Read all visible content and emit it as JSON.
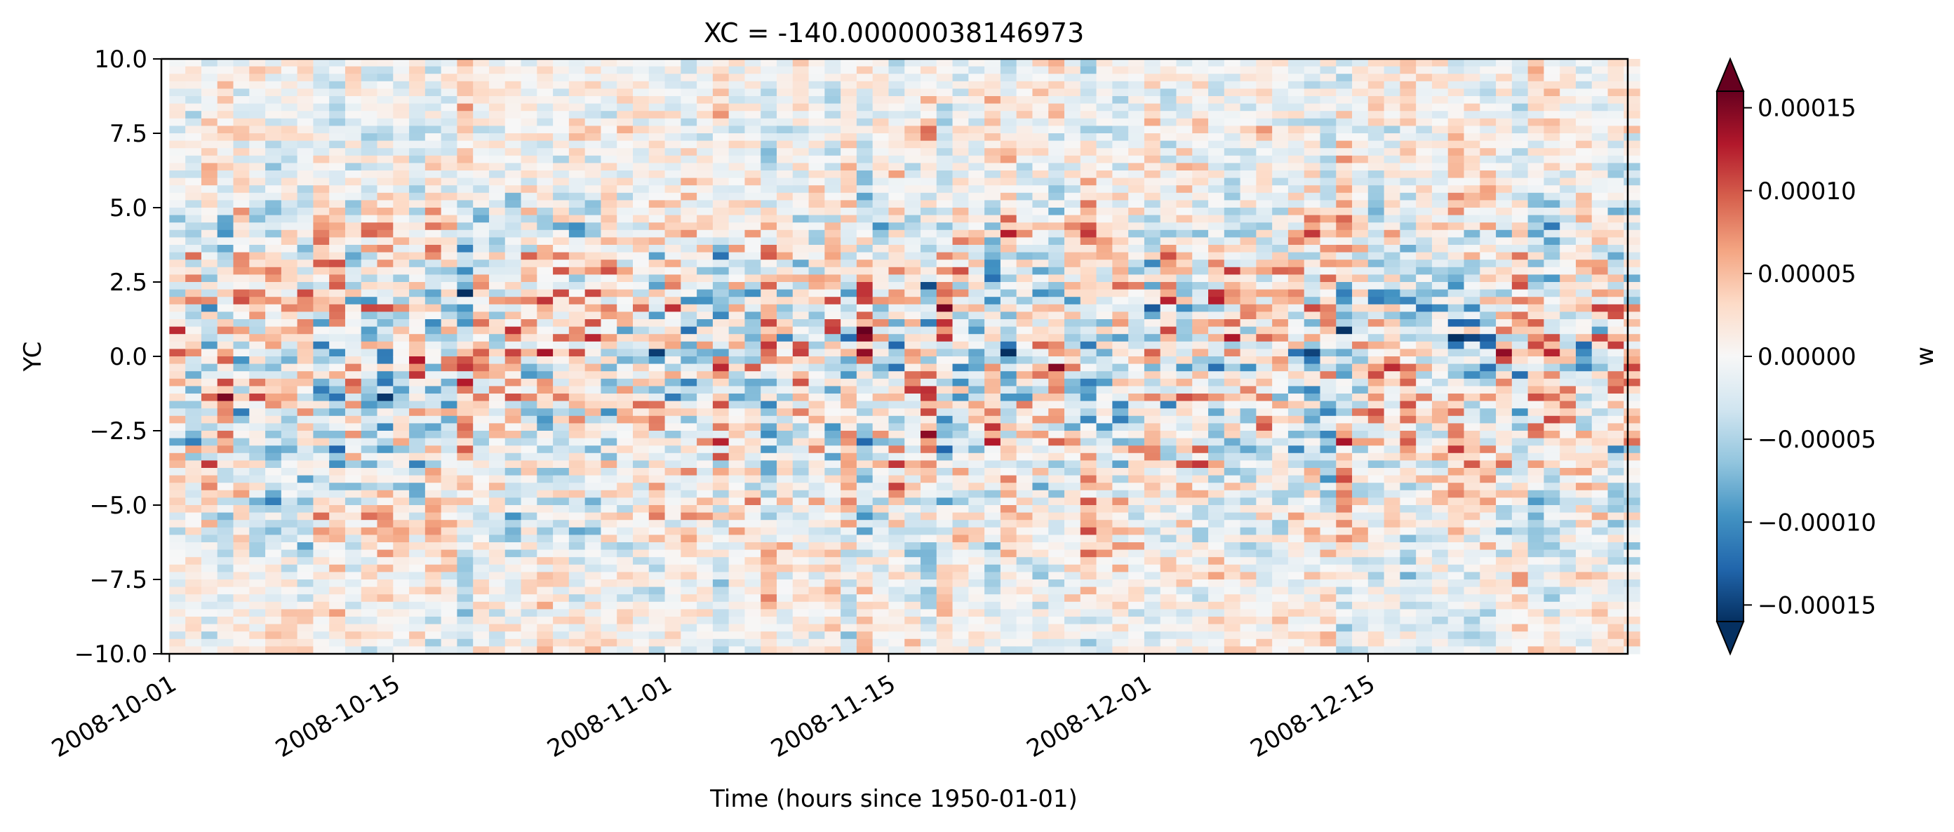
{
  "chart_data": {
    "type": "heatmap",
    "title": "XC = -140.00000038146973",
    "xlabel": "Time (hours since 1950-01-01)",
    "ylabel": "YC",
    "colorbar_label": "w",
    "colormap": "RdBu_r",
    "colorbar_extend": "both",
    "x_range": [
      "2008-10-01",
      "2008-12-31"
    ],
    "xlim": [
      "2008-09-30",
      "2008-12-31"
    ],
    "x_ticks": [
      "2008-10-01",
      "2008-10-15",
      "2008-11-01",
      "2008-11-15",
      "2008-12-01",
      "2008-12-15"
    ],
    "ylim": [
      -10.0,
      10.0
    ],
    "y_ticks": [
      "10.0",
      "7.5",
      "5.0",
      "2.5",
      "0.0",
      "−2.5",
      "−5.0",
      "−7.5",
      "−10.0"
    ],
    "y_tick_values": [
      10.0,
      7.5,
      5.0,
      2.5,
      0.0,
      -2.5,
      -5.0,
      -7.5,
      -10.0
    ],
    "color_range": [
      -0.00016,
      0.00016
    ],
    "colorbar_ticks": [
      "0.00015",
      "0.00010",
      "0.00005",
      "0.00000",
      "−0.00005",
      "−0.00010",
      "−0.00015"
    ],
    "colorbar_tick_values": [
      0.00015,
      0.0001,
      5e-05,
      0.0,
      -5e-05,
      -0.0001,
      -0.00015
    ],
    "grid": false,
    "time_steps": 92,
    "lat_rows": 80
  }
}
